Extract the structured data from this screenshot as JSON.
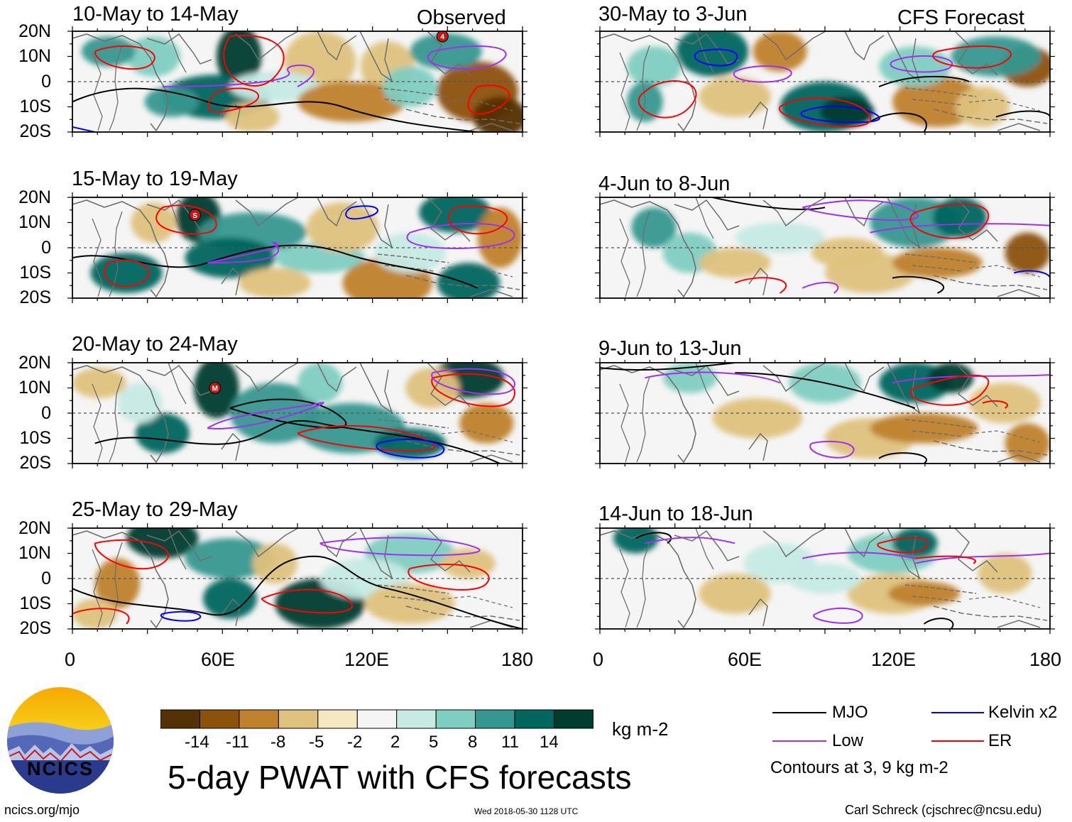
{
  "chart_data": {
    "type": "heatmap",
    "title": "5-day PWAT with CFS forecasts",
    "units": "kg m-2",
    "observed_label": "Observed",
    "forecast_label": "CFS Forecast",
    "lat_ticks": [
      "20N",
      "10N",
      "0",
      "10S",
      "20S"
    ],
    "lon_ticks": [
      "0",
      "60E",
      "120E",
      "180"
    ],
    "xlim": [
      0,
      180
    ],
    "ylim": [
      -20,
      20
    ],
    "observed_panels": [
      {
        "title": "10-May to 14-May",
        "markers": [
          {
            "label": "4",
            "lon": 148,
            "lat": 18
          }
        ]
      },
      {
        "title": "15-May to 19-May",
        "markers": [
          {
            "label": "S",
            "lon": 49,
            "lat": 13
          }
        ]
      },
      {
        "title": "20-May to 24-May",
        "markers": [
          {
            "label": "M",
            "lon": 57,
            "lat": 10
          }
        ]
      },
      {
        "title": "25-May to 29-May",
        "markers": []
      }
    ],
    "forecast_panels": [
      {
        "title": "30-May to 3-Jun"
      },
      {
        "title": "4-Jun to 8-Jun"
      },
      {
        "title": "9-Jun to 13-Jun"
      },
      {
        "title": "14-Jun to 18-Jun"
      }
    ],
    "colorbar": {
      "ticks": [
        "-14",
        "-11",
        "-8",
        "-5",
        "-2",
        "2",
        "5",
        "8",
        "11",
        "14"
      ],
      "colors": [
        "#543005",
        "#8c510a",
        "#bf812d",
        "#dfc27d",
        "#f6e8c3",
        "#f5f5f5",
        "#c7eae5",
        "#80cdc1",
        "#35978f",
        "#01665e",
        "#003c30"
      ]
    },
    "contour_legend": [
      {
        "name": "MJO",
        "color": "#000000"
      },
      {
        "name": "Kelvin x2",
        "color": "#0000ff"
      },
      {
        "name": "Low",
        "color": "#a030f0"
      },
      {
        "name": "ER",
        "color": "#ff0000"
      }
    ],
    "contour_note": "Contours at 3, 9 kg m-2"
  },
  "footer": {
    "logo_text": "NCICS",
    "url": "ncics.org/mjo",
    "timestamp": "Wed 2018-05-30 1128 UTC",
    "author": "Carl Schreck (cjschrec@ncsu.edu)"
  }
}
